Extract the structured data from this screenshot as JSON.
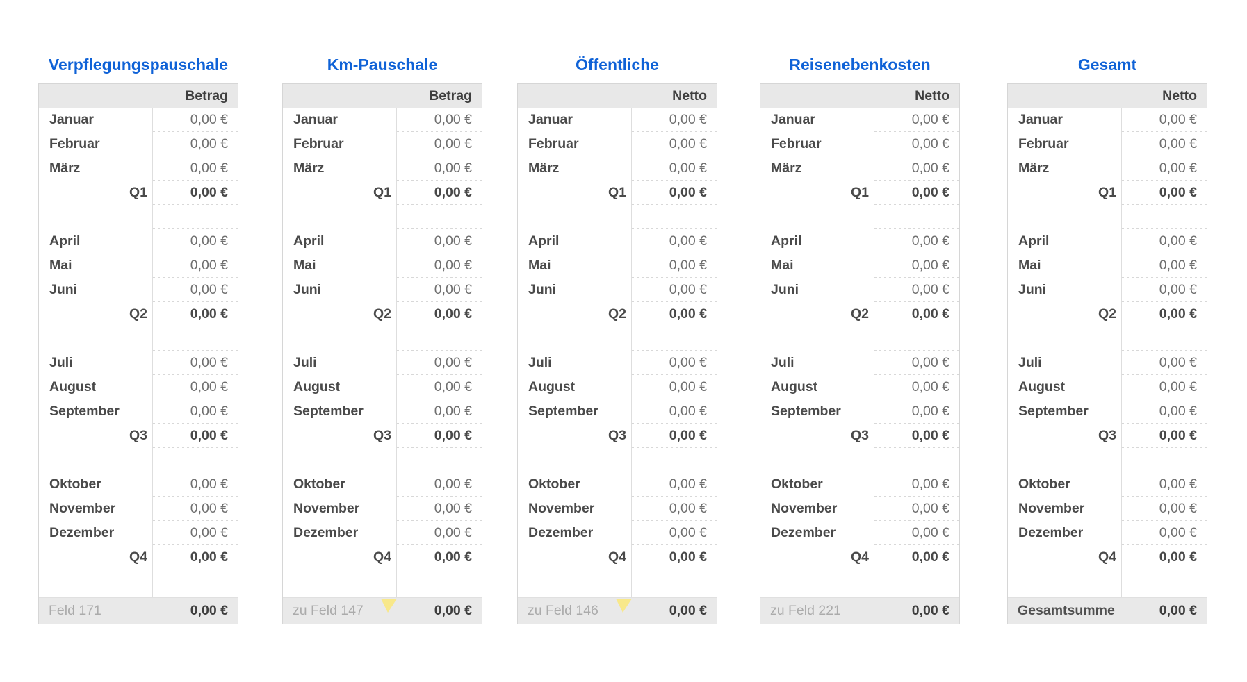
{
  "app": {
    "background": "#ffffff"
  },
  "colors": {
    "title_blue": "#0f62d7",
    "header_bg": "#e8e8e8",
    "footer_bg": "#e9e9e9",
    "table_border": "#d6d6d6",
    "column_divider": "#dedede",
    "dashed_line": "#d8d8d8",
    "label_text": "#4a4a4a",
    "value_text": "#6f6f6f",
    "muted_footer_text": "#ababab",
    "marker_yellow": "#f8e88a"
  },
  "tables": [
    {
      "id": "verpflegungspauschale",
      "title": "Verpflegungspauschale",
      "column_header": "Betrag",
      "rows": [
        {
          "type": "month",
          "label": "Januar",
          "value": "0,00 €"
        },
        {
          "type": "month",
          "label": "Februar",
          "value": "0,00 €"
        },
        {
          "type": "month",
          "label": "März",
          "value": "0,00 €"
        },
        {
          "type": "quarter",
          "label": "Q1",
          "value": "0,00 €"
        },
        {
          "type": "spacer"
        },
        {
          "type": "month",
          "label": "April",
          "value": "0,00 €"
        },
        {
          "type": "month",
          "label": "Mai",
          "value": "0,00 €"
        },
        {
          "type": "month",
          "label": "Juni",
          "value": "0,00 €"
        },
        {
          "type": "quarter",
          "label": "Q2",
          "value": "0,00 €"
        },
        {
          "type": "spacer"
        },
        {
          "type": "month",
          "label": "Juli",
          "value": "0,00 €"
        },
        {
          "type": "month",
          "label": "August",
          "value": "0,00 €"
        },
        {
          "type": "month",
          "label": "September",
          "value": "0,00 €"
        },
        {
          "type": "quarter",
          "label": "Q3",
          "value": "0,00 €"
        },
        {
          "type": "spacer"
        },
        {
          "type": "month",
          "label": "Oktober",
          "value": "0,00 €"
        },
        {
          "type": "month",
          "label": "November",
          "value": "0,00 €"
        },
        {
          "type": "month",
          "label": "Dezember",
          "value": "0,00 €"
        },
        {
          "type": "quarter",
          "label": "Q4",
          "value": "0,00 €"
        },
        {
          "type": "spacer"
        }
      ],
      "footer": {
        "label": "Feld 171",
        "value": "0,00 €",
        "has_marker": false,
        "bold_label": false
      }
    },
    {
      "id": "km-pauschale",
      "title": "Km-Pauschale",
      "column_header": "Betrag",
      "rows": [
        {
          "type": "month",
          "label": "Januar",
          "value": "0,00 €"
        },
        {
          "type": "month",
          "label": "Februar",
          "value": "0,00 €"
        },
        {
          "type": "month",
          "label": "März",
          "value": "0,00 €"
        },
        {
          "type": "quarter",
          "label": "Q1",
          "value": "0,00 €"
        },
        {
          "type": "spacer"
        },
        {
          "type": "month",
          "label": "April",
          "value": "0,00 €"
        },
        {
          "type": "month",
          "label": "Mai",
          "value": "0,00 €"
        },
        {
          "type": "month",
          "label": "Juni",
          "value": "0,00 €"
        },
        {
          "type": "quarter",
          "label": "Q2",
          "value": "0,00 €"
        },
        {
          "type": "spacer"
        },
        {
          "type": "month",
          "label": "Juli",
          "value": "0,00 €"
        },
        {
          "type": "month",
          "label": "August",
          "value": "0,00 €"
        },
        {
          "type": "month",
          "label": "September",
          "value": "0,00 €"
        },
        {
          "type": "quarter",
          "label": "Q3",
          "value": "0,00 €"
        },
        {
          "type": "spacer"
        },
        {
          "type": "month",
          "label": "Oktober",
          "value": "0,00 €"
        },
        {
          "type": "month",
          "label": "November",
          "value": "0,00 €"
        },
        {
          "type": "month",
          "label": "Dezember",
          "value": "0,00 €"
        },
        {
          "type": "quarter",
          "label": "Q4",
          "value": "0,00 €"
        },
        {
          "type": "spacer"
        }
      ],
      "footer": {
        "label": "zu Feld 147",
        "value": "0,00 €",
        "has_marker": true,
        "bold_label": false
      }
    },
    {
      "id": "oeffentliche",
      "title": "Öffentliche",
      "column_header": "Netto",
      "rows": [
        {
          "type": "month",
          "label": "Januar",
          "value": "0,00 €"
        },
        {
          "type": "month",
          "label": "Februar",
          "value": "0,00 €"
        },
        {
          "type": "month",
          "label": "März",
          "value": "0,00 €"
        },
        {
          "type": "quarter",
          "label": "Q1",
          "value": "0,00 €"
        },
        {
          "type": "spacer"
        },
        {
          "type": "month",
          "label": "April",
          "value": "0,00 €"
        },
        {
          "type": "month",
          "label": "Mai",
          "value": "0,00 €"
        },
        {
          "type": "month",
          "label": "Juni",
          "value": "0,00 €"
        },
        {
          "type": "quarter",
          "label": "Q2",
          "value": "0,00 €"
        },
        {
          "type": "spacer"
        },
        {
          "type": "month",
          "label": "Juli",
          "value": "0,00 €"
        },
        {
          "type": "month",
          "label": "August",
          "value": "0,00 €"
        },
        {
          "type": "month",
          "label": "September",
          "value": "0,00 €"
        },
        {
          "type": "quarter",
          "label": "Q3",
          "value": "0,00 €"
        },
        {
          "type": "spacer"
        },
        {
          "type": "month",
          "label": "Oktober",
          "value": "0,00 €"
        },
        {
          "type": "month",
          "label": "November",
          "value": "0,00 €"
        },
        {
          "type": "month",
          "label": "Dezember",
          "value": "0,00 €"
        },
        {
          "type": "quarter",
          "label": "Q4",
          "value": "0,00 €"
        },
        {
          "type": "spacer"
        }
      ],
      "footer": {
        "label": "zu Feld 146",
        "value": "0,00 €",
        "has_marker": true,
        "bold_label": false
      }
    },
    {
      "id": "reisenebenkosten",
      "title": "Reisenebenkosten",
      "column_header": "Netto",
      "rows": [
        {
          "type": "month",
          "label": "Januar",
          "value": "0,00 €"
        },
        {
          "type": "month",
          "label": "Februar",
          "value": "0,00 €"
        },
        {
          "type": "month",
          "label": "März",
          "value": "0,00 €"
        },
        {
          "type": "quarter",
          "label": "Q1",
          "value": "0,00 €"
        },
        {
          "type": "spacer"
        },
        {
          "type": "month",
          "label": "April",
          "value": "0,00 €"
        },
        {
          "type": "month",
          "label": "Mai",
          "value": "0,00 €"
        },
        {
          "type": "month",
          "label": "Juni",
          "value": "0,00 €"
        },
        {
          "type": "quarter",
          "label": "Q2",
          "value": "0,00 €"
        },
        {
          "type": "spacer"
        },
        {
          "type": "month",
          "label": "Juli",
          "value": "0,00 €"
        },
        {
          "type": "month",
          "label": "August",
          "value": "0,00 €"
        },
        {
          "type": "month",
          "label": "September",
          "value": "0,00 €"
        },
        {
          "type": "quarter",
          "label": "Q3",
          "value": "0,00 €"
        },
        {
          "type": "spacer"
        },
        {
          "type": "month",
          "label": "Oktober",
          "value": "0,00 €"
        },
        {
          "type": "month",
          "label": "November",
          "value": "0,00 €"
        },
        {
          "type": "month",
          "label": "Dezember",
          "value": "0,00 €"
        },
        {
          "type": "quarter",
          "label": "Q4",
          "value": "0,00 €"
        },
        {
          "type": "spacer"
        }
      ],
      "footer": {
        "label": "zu Feld 221",
        "value": "0,00 €",
        "has_marker": false,
        "bold_label": false
      }
    },
    {
      "id": "gesamt",
      "title": "Gesamt",
      "column_header": "Netto",
      "rows": [
        {
          "type": "month",
          "label": "Januar",
          "value": "0,00 €"
        },
        {
          "type": "month",
          "label": "Februar",
          "value": "0,00 €"
        },
        {
          "type": "month",
          "label": "März",
          "value": "0,00 €"
        },
        {
          "type": "quarter",
          "label": "Q1",
          "value": "0,00 €"
        },
        {
          "type": "spacer"
        },
        {
          "type": "month",
          "label": "April",
          "value": "0,00 €"
        },
        {
          "type": "month",
          "label": "Mai",
          "value": "0,00 €"
        },
        {
          "type": "month",
          "label": "Juni",
          "value": "0,00 €"
        },
        {
          "type": "quarter",
          "label": "Q2",
          "value": "0,00 €"
        },
        {
          "type": "spacer"
        },
        {
          "type": "month",
          "label": "Juli",
          "value": "0,00 €"
        },
        {
          "type": "month",
          "label": "August",
          "value": "0,00 €"
        },
        {
          "type": "month",
          "label": "September",
          "value": "0,00 €"
        },
        {
          "type": "quarter",
          "label": "Q3",
          "value": "0,00 €"
        },
        {
          "type": "spacer"
        },
        {
          "type": "month",
          "label": "Oktober",
          "value": "0,00 €"
        },
        {
          "type": "month",
          "label": "November",
          "value": "0,00 €"
        },
        {
          "type": "month",
          "label": "Dezember",
          "value": "0,00 €"
        },
        {
          "type": "quarter",
          "label": "Q4",
          "value": "0,00 €"
        },
        {
          "type": "spacer"
        }
      ],
      "footer": {
        "label": "Gesamtsumme",
        "value": "0,00 €",
        "has_marker": false,
        "bold_label": true
      }
    }
  ]
}
